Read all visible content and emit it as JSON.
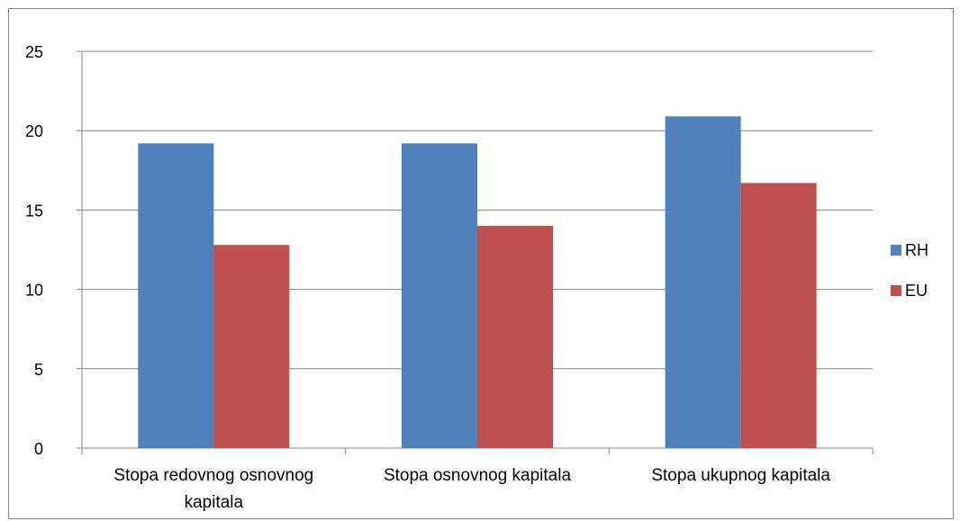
{
  "chart_data": {
    "type": "bar",
    "categories": [
      [
        "Stopa redovnog osnovnog",
        "kapitala"
      ],
      [
        "Stopa osnovnog kapitala"
      ],
      [
        "Stopa ukupnog kapitala"
      ]
    ],
    "series": [
      {
        "name": "RH",
        "values": [
          19.2,
          19.2,
          20.9
        ],
        "color": "#4f81bd"
      },
      {
        "name": "EU",
        "values": [
          12.8,
          14.0,
          16.7
        ],
        "color": "#c0504d"
      }
    ],
    "yticks": [
      0,
      5,
      10,
      15,
      20,
      25
    ],
    "ylim": [
      0,
      25
    ],
    "grid": true,
    "legend_position": "right",
    "title": "",
    "xlabel": "",
    "ylabel": ""
  }
}
